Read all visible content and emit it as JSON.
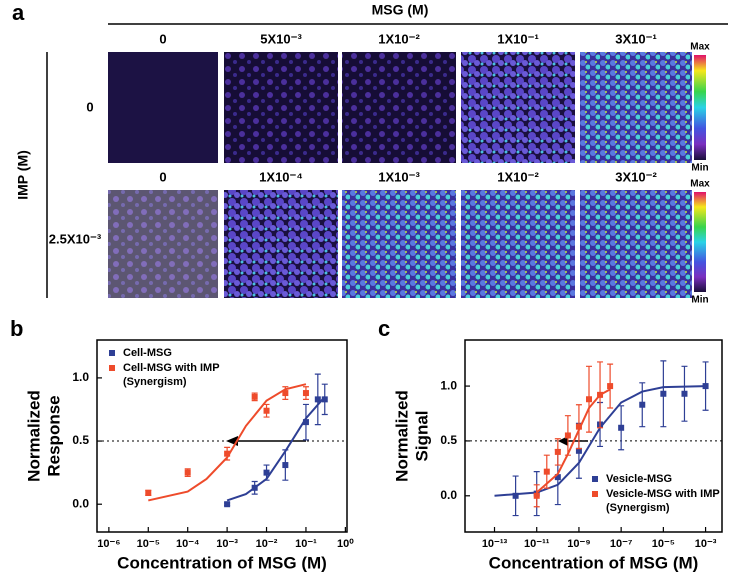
{
  "panel_a": {
    "label": "a",
    "msg_title": "MSG (M)",
    "imp_title": "IMP (M)",
    "rows": [
      {
        "label": "0",
        "columns": [
          "0",
          "5X10⁻³",
          "1X10⁻²",
          "1X10⁻¹",
          "3X10⁻¹"
        ]
      },
      {
        "label": "2.5X10⁻³",
        "columns": [
          "0",
          "1X10⁻⁴",
          "1X10⁻³",
          "1X10⁻²",
          "3X10⁻²"
        ]
      }
    ],
    "colorbar": {
      "max": "Max",
      "min": "Min"
    }
  },
  "chart_data": [
    {
      "type": "scatter",
      "panel": "b",
      "xlabel": "Concentration of MSG (M)",
      "ylabel": [
        "Normalized",
        "Response"
      ],
      "xscale": "log",
      "xlim": [
        5e-07,
        1.1
      ],
      "ylim": [
        -0.22,
        1.3
      ],
      "xticks": [
        {
          "value": 1e-06,
          "label": "10⁻⁶"
        },
        {
          "value": 1e-05,
          "label": "10⁻⁵"
        },
        {
          "value": 0.0001,
          "label": "10⁻⁴"
        },
        {
          "value": 0.001,
          "label": "10⁻³"
        },
        {
          "value": 0.01,
          "label": "10⁻²"
        },
        {
          "value": 0.1,
          "label": "10⁻¹"
        },
        {
          "value": 1,
          "label": "10⁰"
        }
      ],
      "yticks": [
        {
          "value": 0,
          "label": "0.0"
        },
        {
          "value": 0.5,
          "label": "0.5"
        },
        {
          "value": 1,
          "label": "1.0"
        }
      ],
      "hline": 0.5,
      "legend": "upper left",
      "series": [
        {
          "name": "Cell-MSG",
          "color": "#2e3f95",
          "x": [
            0.001,
            0.005,
            0.01,
            0.03,
            0.1,
            0.2,
            0.3
          ],
          "values": [
            0.0,
            0.13,
            0.25,
            0.31,
            0.65,
            0.83,
            0.83
          ],
          "errors": [
            0.01,
            0.05,
            0.06,
            0.12,
            0.14,
            0.2,
            0.12
          ],
          "fit": {
            "x": [
              0.001,
              0.003,
              0.01,
              0.03,
              0.1,
              0.3
            ],
            "values": [
              0.03,
              0.08,
              0.2,
              0.42,
              0.68,
              0.85
            ]
          }
        },
        {
          "name": "Cell-MSG with IMP (Synergism)",
          "color": "#ee4b2b",
          "x": [
            1e-05,
            0.0001,
            0.001,
            0.005,
            0.01,
            0.03,
            0.1
          ],
          "values": [
            0.09,
            0.25,
            0.4,
            0.85,
            0.74,
            0.88,
            0.88
          ],
          "errors": [
            0.02,
            0.03,
            0.05,
            0.03,
            0.05,
            0.05,
            0.05
          ],
          "fit": {
            "x": [
              1e-05,
              0.0001,
              0.0003,
              0.001,
              0.003,
              0.01,
              0.03,
              0.1
            ],
            "values": [
              0.03,
              0.1,
              0.2,
              0.37,
              0.62,
              0.82,
              0.91,
              0.95
            ]
          }
        }
      ]
    },
    {
      "type": "scatter",
      "panel": "c",
      "xlabel": "Concentration of MSG (M)",
      "ylabel": [
        "Normalized",
        "Signal"
      ],
      "xscale": "log",
      "xlim": [
        4e-15,
        0.006
      ],
      "ylim": [
        -0.33,
        1.42
      ],
      "xticks": [
        {
          "value": 1e-13,
          "label": "10⁻¹³"
        },
        {
          "value": 1e-11,
          "label": "10⁻¹¹"
        },
        {
          "value": 1e-09,
          "label": "10⁻⁹"
        },
        {
          "value": 1e-07,
          "label": "10⁻⁷"
        },
        {
          "value": 1e-05,
          "label": "10⁻⁵"
        },
        {
          "value": 0.001,
          "label": "10⁻³"
        }
      ],
      "yticks": [
        {
          "value": 0,
          "label": "0.0"
        },
        {
          "value": 0.5,
          "label": "0.5"
        },
        {
          "value": 1,
          "label": "1.0"
        }
      ],
      "hline": 0.5,
      "legend": "lower right",
      "series": [
        {
          "name": "Vesicle-MSG",
          "color": "#2e3f95",
          "x": [
            1e-12,
            1e-11,
            1e-10,
            1e-09,
            1e-08,
            1e-07,
            1e-06,
            1e-05,
            0.0001,
            0.001
          ],
          "values": [
            0.0,
            0.02,
            0.17,
            0.41,
            0.65,
            0.62,
            0.83,
            0.93,
            0.93,
            1.0
          ],
          "errors": [
            0.18,
            0.2,
            0.25,
            0.25,
            0.2,
            0.2,
            0.2,
            0.3,
            0.25,
            0.22
          ],
          "fit": {
            "x": [
              1e-13,
              1e-11,
              1e-10,
              1e-09,
              1e-08,
              1e-07,
              1e-06,
              1e-05,
              0.001
            ],
            "values": [
              0.0,
              0.03,
              0.1,
              0.3,
              0.62,
              0.85,
              0.95,
              0.99,
              1.0
            ]
          }
        },
        {
          "name": "Vesicle-MSG with IMP (Synergism)",
          "color": "#ee4b2b",
          "x": [
            1e-11,
            3e-11,
            1e-10,
            3e-10,
            1e-09,
            3e-09,
            1e-08,
            3e-08
          ],
          "values": [
            0.0,
            0.22,
            0.4,
            0.55,
            0.63,
            0.88,
            0.92,
            1.0
          ],
          "errors": [
            0.1,
            0.15,
            0.12,
            0.18,
            0.2,
            0.3,
            0.3,
            0.2
          ],
          "fit": {
            "x": [
              1e-11,
              1e-10,
              3e-10,
              1e-09,
              3e-09,
              1e-08,
              3e-08
            ],
            "values": [
              0.03,
              0.2,
              0.38,
              0.6,
              0.8,
              0.92,
              0.97
            ]
          }
        }
      ]
    }
  ]
}
